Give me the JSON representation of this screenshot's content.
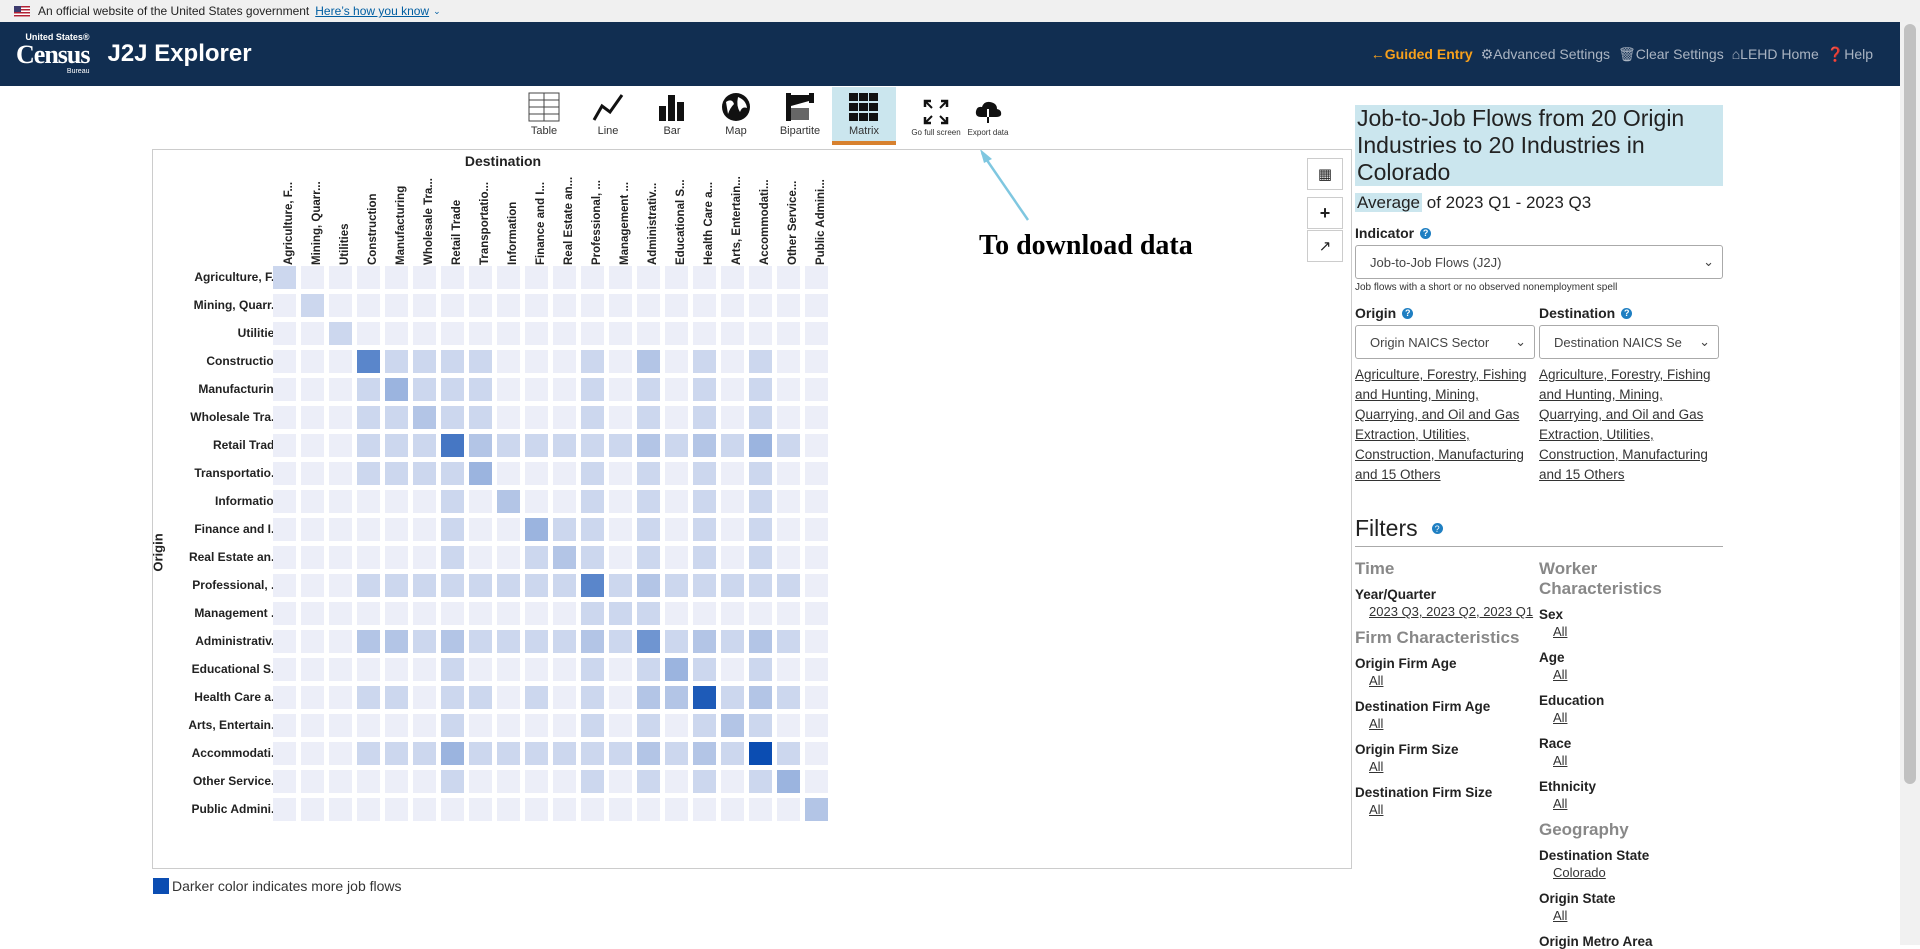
{
  "gov_banner": {
    "text": "An official website of the United States government",
    "link": "Here’s how you know"
  },
  "header": {
    "logo_top": "United States®",
    "logo_main": "Census",
    "logo_bottom": "Bureau",
    "app_title": "J2J Explorer",
    "nav": [
      "Guided Entry",
      "Advanced Settings",
      "Clear Settings",
      "LEHD Home",
      "Help"
    ]
  },
  "toolbar": {
    "tools": [
      "Table",
      "Line",
      "Bar",
      "Map",
      "Bipartite",
      "Matrix"
    ],
    "fullscreen": "Go full screen",
    "export": "Export data"
  },
  "chart_data": {
    "type": "heatmap",
    "x_title": "Destination",
    "y_title": "Origin",
    "columns": [
      "Agriculture, F...",
      "Mining, Quarr...",
      "Utilities",
      "Construction",
      "Manufacturing",
      "Wholesale Tra...",
      "Retail Trade",
      "Transportatio...",
      "Information",
      "Finance and I...",
      "Real Estate an...",
      "Professional, ...",
      "Management ...",
      "Administrativ...",
      "Educational S...",
      "Health Care a...",
      "Arts, Entertain...",
      "Accommodati...",
      "Other Service...",
      "Public Admini..."
    ],
    "rows": [
      "Agriculture, F...",
      "Mining, Quarr...",
      "Utilities",
      "Construction",
      "Manufacturing",
      "Wholesale Tra...",
      "Retail Trade",
      "Transportatio...",
      "Information",
      "Finance and I...",
      "Real Estate an...",
      "Professional, ...",
      "Management ...",
      "Administrativ...",
      "Educational S...",
      "Health Care a...",
      "Arts, Entertain...",
      "Accommodati...",
      "Other Service...",
      "Public Admini..."
    ],
    "intensity": [
      [
        1,
        0,
        0,
        0,
        0,
        0,
        0,
        0,
        0,
        0,
        0,
        0,
        0,
        0,
        0,
        0,
        0,
        0,
        0,
        0
      ],
      [
        0,
        1,
        0,
        0,
        0,
        0,
        0,
        0,
        0,
        0,
        0,
        0,
        0,
        0,
        0,
        0,
        0,
        0,
        0,
        0
      ],
      [
        0,
        0,
        1,
        0,
        0,
        0,
        0,
        0,
        0,
        0,
        0,
        0,
        0,
        0,
        0,
        0,
        0,
        0,
        0,
        0
      ],
      [
        0,
        0,
        0,
        6,
        1,
        1,
        1,
        1,
        0,
        0,
        0,
        1,
        0,
        2,
        0,
        1,
        0,
        1,
        0,
        0
      ],
      [
        0,
        0,
        0,
        1,
        3,
        1,
        1,
        1,
        0,
        0,
        0,
        1,
        0,
        1,
        0,
        1,
        0,
        1,
        0,
        0
      ],
      [
        0,
        0,
        0,
        1,
        1,
        2,
        1,
        1,
        0,
        0,
        0,
        1,
        0,
        1,
        0,
        1,
        0,
        1,
        0,
        0
      ],
      [
        0,
        0,
        0,
        1,
        1,
        1,
        7,
        2,
        1,
        1,
        1,
        1,
        1,
        2,
        1,
        2,
        1,
        3,
        1,
        0
      ],
      [
        0,
        0,
        0,
        1,
        1,
        1,
        1,
        3,
        0,
        0,
        0,
        1,
        0,
        1,
        0,
        1,
        0,
        1,
        0,
        0
      ],
      [
        0,
        0,
        0,
        0,
        0,
        0,
        1,
        0,
        2,
        0,
        0,
        1,
        0,
        1,
        0,
        1,
        0,
        1,
        0,
        0
      ],
      [
        0,
        0,
        0,
        0,
        0,
        0,
        1,
        0,
        0,
        3,
        1,
        1,
        0,
        1,
        0,
        1,
        0,
        1,
        0,
        0
      ],
      [
        0,
        0,
        0,
        0,
        0,
        0,
        1,
        0,
        0,
        1,
        2,
        1,
        0,
        1,
        0,
        1,
        0,
        1,
        0,
        0
      ],
      [
        0,
        0,
        0,
        1,
        1,
        1,
        1,
        1,
        1,
        1,
        1,
        6,
        1,
        2,
        1,
        1,
        1,
        1,
        1,
        0
      ],
      [
        0,
        0,
        0,
        0,
        0,
        0,
        0,
        0,
        0,
        0,
        0,
        1,
        1,
        1,
        0,
        0,
        0,
        0,
        0,
        0
      ],
      [
        0,
        0,
        0,
        2,
        2,
        1,
        2,
        1,
        1,
        1,
        1,
        2,
        1,
        5,
        1,
        2,
        1,
        2,
        1,
        0
      ],
      [
        0,
        0,
        0,
        0,
        0,
        0,
        1,
        0,
        0,
        0,
        0,
        1,
        0,
        1,
        3,
        1,
        0,
        1,
        0,
        0
      ],
      [
        0,
        0,
        0,
        1,
        1,
        0,
        1,
        1,
        0,
        1,
        0,
        1,
        0,
        2,
        2,
        9,
        1,
        2,
        1,
        0
      ],
      [
        0,
        0,
        0,
        0,
        0,
        0,
        1,
        0,
        0,
        0,
        0,
        1,
        0,
        1,
        0,
        1,
        2,
        1,
        0,
        0
      ],
      [
        0,
        0,
        0,
        1,
        1,
        1,
        3,
        1,
        1,
        1,
        1,
        1,
        1,
        2,
        1,
        2,
        1,
        10,
        1,
        0
      ],
      [
        0,
        0,
        0,
        0,
        0,
        0,
        1,
        0,
        0,
        0,
        0,
        1,
        0,
        1,
        0,
        1,
        0,
        1,
        3,
        0
      ],
      [
        0,
        0,
        0,
        0,
        0,
        0,
        0,
        0,
        0,
        0,
        0,
        0,
        0,
        0,
        0,
        0,
        0,
        0,
        0,
        2
      ]
    ],
    "legend": "Darker color indicates more job flows"
  },
  "annotation": "To download data",
  "right_panel": {
    "title": "Job-to-Job Flows from 20 Origin Industries to 20 Industries in Colorado",
    "average_word": "Average",
    "period": "of 2023 Q1 - 2023 Q3",
    "indicator_label": "Indicator",
    "indicator_value": "Job-to-Job Flows (J2J)",
    "indicator_hint": "Job flows with a short or no observed nonemployment spell",
    "origin_label": "Origin",
    "origin_select": "Origin NAICS Sector",
    "origin_links": "Agriculture, Forestry, Fishing and Hunting, Mining, Quarrying, and Oil and Gas Extraction, Utilities, Construction, Manufacturing and 15 Others",
    "dest_label": "Destination",
    "dest_select": "Destination NAICS Se",
    "dest_links": "Agriculture, Forestry, Fishing and Hunting, Mining, Quarrying, and Oil and Gas Extraction, Utilities, Construction, Manufacturing and 15 Others",
    "filters_title": "Filters",
    "time_h": "Time",
    "year_quarter_label": "Year/Quarter",
    "year_quarter_value": "2023 Q3, 2023 Q2, 2023 Q1",
    "firm_h": "Firm Characteristics",
    "origin_firm_age": "Origin Firm Age",
    "dest_firm_age": "Destination Firm Age",
    "origin_firm_size": "Origin Firm Size",
    "dest_firm_size": "Destination Firm Size",
    "all": "All",
    "worker_h": "Worker Characteristics",
    "sex": "Sex",
    "age": "Age",
    "education": "Education",
    "race": "Race",
    "ethnicity": "Ethnicity",
    "geo_h": "Geography",
    "dest_state": "Destination State",
    "dest_state_value": "Colorado",
    "origin_state": "Origin State",
    "origin_metro": "Origin Metro Area"
  },
  "colors": {
    "header_bg": "#112e51",
    "accent": "#f7a01c",
    "highlight": "#cbe6ee",
    "cell_base": "#eceef8",
    "cell_max": "#0b4db2"
  }
}
